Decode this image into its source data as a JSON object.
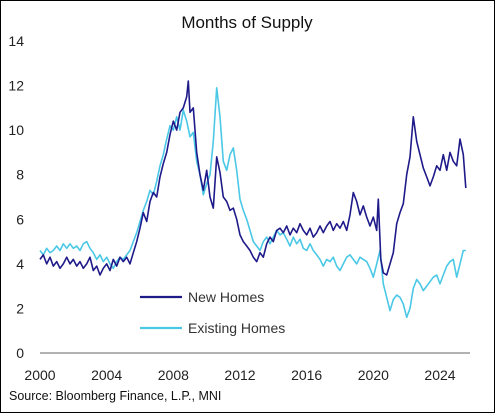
{
  "chart_data": {
    "type": "line",
    "title": "Months of Supply",
    "source": "Source: Bloomberg Finance, L.P., MNI",
    "xlabel": "",
    "ylabel": "",
    "xlim": [
      2000,
      2025.8
    ],
    "ylim": [
      0,
      14
    ],
    "xticks": [
      2000,
      2004,
      2008,
      2012,
      2016,
      2020,
      2024
    ],
    "yticks": [
      0,
      2,
      4,
      6,
      8,
      10,
      12,
      14
    ],
    "grid": "none",
    "legend_position": "lower-left",
    "series": [
      {
        "name": "New Homes",
        "color": "#1f1a8a",
        "points": [
          [
            2000.0,
            4.2
          ],
          [
            2000.2,
            4.4
          ],
          [
            2000.4,
            4.0
          ],
          [
            2000.6,
            4.3
          ],
          [
            2000.8,
            3.9
          ],
          [
            2001.0,
            4.1
          ],
          [
            2001.2,
            3.8
          ],
          [
            2001.4,
            4.0
          ],
          [
            2001.6,
            4.3
          ],
          [
            2001.8,
            4.0
          ],
          [
            2002.0,
            4.2
          ],
          [
            2002.2,
            3.9
          ],
          [
            2002.4,
            4.1
          ],
          [
            2002.6,
            3.8
          ],
          [
            2002.8,
            4.0
          ],
          [
            2003.0,
            4.3
          ],
          [
            2003.2,
            3.7
          ],
          [
            2003.4,
            3.9
          ],
          [
            2003.6,
            3.5
          ],
          [
            2003.8,
            3.8
          ],
          [
            2004.0,
            4.0
          ],
          [
            2004.2,
            3.7
          ],
          [
            2004.4,
            4.2
          ],
          [
            2004.6,
            3.9
          ],
          [
            2004.8,
            4.3
          ],
          [
            2005.0,
            4.1
          ],
          [
            2005.2,
            4.3
          ],
          [
            2005.4,
            4.0
          ],
          [
            2005.6,
            4.5
          ],
          [
            2005.8,
            5.0
          ],
          [
            2006.0,
            5.6
          ],
          [
            2006.2,
            6.3
          ],
          [
            2006.4,
            5.9
          ],
          [
            2006.6,
            6.8
          ],
          [
            2006.8,
            7.2
          ],
          [
            2007.0,
            7.0
          ],
          [
            2007.2,
            7.9
          ],
          [
            2007.4,
            8.5
          ],
          [
            2007.6,
            9.0
          ],
          [
            2007.8,
            9.8
          ],
          [
            2008.0,
            10.4
          ],
          [
            2008.2,
            10.0
          ],
          [
            2008.4,
            10.8
          ],
          [
            2008.6,
            11.0
          ],
          [
            2008.8,
            11.5
          ],
          [
            2008.9,
            12.2
          ],
          [
            2009.0,
            10.8
          ],
          [
            2009.2,
            11.0
          ],
          [
            2009.4,
            9.0
          ],
          [
            2009.6,
            8.0
          ],
          [
            2009.8,
            7.3
          ],
          [
            2010.0,
            8.2
          ],
          [
            2010.2,
            7.0
          ],
          [
            2010.4,
            6.5
          ],
          [
            2010.6,
            8.8
          ],
          [
            2010.8,
            8.1
          ],
          [
            2011.0,
            7.0
          ],
          [
            2011.2,
            6.8
          ],
          [
            2011.4,
            6.4
          ],
          [
            2011.6,
            6.5
          ],
          [
            2011.8,
            6.0
          ],
          [
            2012.0,
            5.3
          ],
          [
            2012.2,
            5.0
          ],
          [
            2012.4,
            4.8
          ],
          [
            2012.6,
            4.6
          ],
          [
            2012.8,
            4.3
          ],
          [
            2013.0,
            4.1
          ],
          [
            2013.2,
            4.5
          ],
          [
            2013.4,
            4.3
          ],
          [
            2013.6,
            4.9
          ],
          [
            2013.8,
            5.2
          ],
          [
            2014.0,
            5.0
          ],
          [
            2014.2,
            5.5
          ],
          [
            2014.4,
            5.6
          ],
          [
            2014.6,
            5.4
          ],
          [
            2014.8,
            5.7
          ],
          [
            2015.0,
            5.3
          ],
          [
            2015.2,
            5.6
          ],
          [
            2015.4,
            5.4
          ],
          [
            2015.6,
            5.8
          ],
          [
            2015.8,
            5.5
          ],
          [
            2016.0,
            5.3
          ],
          [
            2016.2,
            5.6
          ],
          [
            2016.4,
            5.2
          ],
          [
            2016.6,
            5.4
          ],
          [
            2016.8,
            5.7
          ],
          [
            2017.0,
            5.4
          ],
          [
            2017.2,
            5.7
          ],
          [
            2017.4,
            5.9
          ],
          [
            2017.6,
            5.5
          ],
          [
            2017.8,
            5.8
          ],
          [
            2018.0,
            5.6
          ],
          [
            2018.2,
            5.9
          ],
          [
            2018.4,
            5.5
          ],
          [
            2018.6,
            6.2
          ],
          [
            2018.8,
            7.2
          ],
          [
            2019.0,
            6.8
          ],
          [
            2019.2,
            6.2
          ],
          [
            2019.4,
            6.6
          ],
          [
            2019.6,
            6.1
          ],
          [
            2019.8,
            5.7
          ],
          [
            2020.0,
            6.1
          ],
          [
            2020.2,
            5.5
          ],
          [
            2020.3,
            6.9
          ],
          [
            2020.45,
            4.2
          ],
          [
            2020.6,
            3.6
          ],
          [
            2020.8,
            3.5
          ],
          [
            2021.0,
            4.0
          ],
          [
            2021.2,
            4.5
          ],
          [
            2021.4,
            5.8
          ],
          [
            2021.6,
            6.3
          ],
          [
            2021.8,
            6.7
          ],
          [
            2022.0,
            8.0
          ],
          [
            2022.2,
            8.8
          ],
          [
            2022.4,
            10.6
          ],
          [
            2022.6,
            9.5
          ],
          [
            2022.8,
            8.9
          ],
          [
            2023.0,
            8.3
          ],
          [
            2023.2,
            7.9
          ],
          [
            2023.4,
            7.5
          ],
          [
            2023.6,
            7.9
          ],
          [
            2023.8,
            8.4
          ],
          [
            2024.0,
            8.2
          ],
          [
            2024.2,
            8.9
          ],
          [
            2024.4,
            8.2
          ],
          [
            2024.6,
            9.0
          ],
          [
            2024.8,
            8.6
          ],
          [
            2025.0,
            8.4
          ],
          [
            2025.2,
            9.6
          ],
          [
            2025.4,
            8.9
          ],
          [
            2025.55,
            7.4
          ]
        ]
      },
      {
        "name": "Existing Homes",
        "color": "#4ac8e6",
        "points": [
          [
            2000.0,
            4.6
          ],
          [
            2000.2,
            4.4
          ],
          [
            2000.4,
            4.7
          ],
          [
            2000.6,
            4.5
          ],
          [
            2000.8,
            4.6
          ],
          [
            2001.0,
            4.8
          ],
          [
            2001.2,
            4.6
          ],
          [
            2001.4,
            4.9
          ],
          [
            2001.6,
            4.7
          ],
          [
            2001.8,
            4.9
          ],
          [
            2002.0,
            4.7
          ],
          [
            2002.2,
            4.8
          ],
          [
            2002.4,
            4.6
          ],
          [
            2002.6,
            4.9
          ],
          [
            2002.8,
            5.0
          ],
          [
            2003.0,
            4.7
          ],
          [
            2003.2,
            4.5
          ],
          [
            2003.4,
            4.2
          ],
          [
            2003.6,
            4.4
          ],
          [
            2003.8,
            4.1
          ],
          [
            2004.0,
            4.3
          ],
          [
            2004.2,
            4.0
          ],
          [
            2004.4,
            3.8
          ],
          [
            2004.6,
            4.1
          ],
          [
            2004.8,
            4.3
          ],
          [
            2005.0,
            4.2
          ],
          [
            2005.2,
            4.4
          ],
          [
            2005.4,
            4.6
          ],
          [
            2005.6,
            5.0
          ],
          [
            2005.8,
            5.4
          ],
          [
            2006.0,
            5.9
          ],
          [
            2006.2,
            6.4
          ],
          [
            2006.4,
            6.8
          ],
          [
            2006.6,
            7.3
          ],
          [
            2006.8,
            7.1
          ],
          [
            2007.0,
            7.7
          ],
          [
            2007.2,
            8.4
          ],
          [
            2007.4,
            8.9
          ],
          [
            2007.6,
            9.6
          ],
          [
            2007.8,
            10.2
          ],
          [
            2008.0,
            10.0
          ],
          [
            2008.2,
            10.6
          ],
          [
            2008.4,
            10.0
          ],
          [
            2008.6,
            10.9
          ],
          [
            2008.8,
            10.4
          ],
          [
            2009.0,
            9.7
          ],
          [
            2009.2,
            9.9
          ],
          [
            2009.4,
            8.6
          ],
          [
            2009.6,
            8.0
          ],
          [
            2009.8,
            7.1
          ],
          [
            2010.0,
            7.6
          ],
          [
            2010.2,
            8.0
          ],
          [
            2010.4,
            9.5
          ],
          [
            2010.6,
            11.9
          ],
          [
            2010.8,
            10.6
          ],
          [
            2011.0,
            8.6
          ],
          [
            2011.2,
            8.2
          ],
          [
            2011.4,
            8.9
          ],
          [
            2011.6,
            9.2
          ],
          [
            2011.8,
            8.2
          ],
          [
            2012.0,
            6.9
          ],
          [
            2012.2,
            6.4
          ],
          [
            2012.4,
            6.0
          ],
          [
            2012.6,
            5.5
          ],
          [
            2012.8,
            5.0
          ],
          [
            2013.0,
            4.8
          ],
          [
            2013.2,
            4.6
          ],
          [
            2013.4,
            5.0
          ],
          [
            2013.6,
            5.2
          ],
          [
            2013.8,
            4.9
          ],
          [
            2014.0,
            5.2
          ],
          [
            2014.2,
            5.5
          ],
          [
            2014.4,
            5.3
          ],
          [
            2014.6,
            5.4
          ],
          [
            2014.8,
            5.1
          ],
          [
            2015.0,
            4.8
          ],
          [
            2015.2,
            5.2
          ],
          [
            2015.4,
            4.9
          ],
          [
            2015.6,
            5.1
          ],
          [
            2015.8,
            4.7
          ],
          [
            2016.0,
            4.6
          ],
          [
            2016.2,
            4.9
          ],
          [
            2016.4,
            4.6
          ],
          [
            2016.6,
            4.4
          ],
          [
            2016.8,
            4.2
          ],
          [
            2017.0,
            3.9
          ],
          [
            2017.2,
            4.2
          ],
          [
            2017.4,
            4.1
          ],
          [
            2017.6,
            4.3
          ],
          [
            2017.8,
            3.9
          ],
          [
            2018.0,
            3.7
          ],
          [
            2018.2,
            4.0
          ],
          [
            2018.4,
            4.3
          ],
          [
            2018.6,
            4.4
          ],
          [
            2018.8,
            4.2
          ],
          [
            2019.0,
            4.0
          ],
          [
            2019.2,
            4.3
          ],
          [
            2019.4,
            4.2
          ],
          [
            2019.6,
            4.1
          ],
          [
            2019.8,
            3.8
          ],
          [
            2020.0,
            3.4
          ],
          [
            2020.2,
            4.0
          ],
          [
            2020.4,
            4.6
          ],
          [
            2020.6,
            3.1
          ],
          [
            2020.8,
            2.5
          ],
          [
            2021.0,
            1.9
          ],
          [
            2021.2,
            2.4
          ],
          [
            2021.4,
            2.6
          ],
          [
            2021.6,
            2.5
          ],
          [
            2021.8,
            2.2
          ],
          [
            2022.0,
            1.6
          ],
          [
            2022.2,
            2.0
          ],
          [
            2022.4,
            2.9
          ],
          [
            2022.6,
            3.3
          ],
          [
            2022.8,
            3.1
          ],
          [
            2023.0,
            2.8
          ],
          [
            2023.2,
            3.0
          ],
          [
            2023.4,
            3.2
          ],
          [
            2023.6,
            3.4
          ],
          [
            2023.8,
            3.5
          ],
          [
            2024.0,
            3.1
          ],
          [
            2024.2,
            3.5
          ],
          [
            2024.4,
            3.9
          ],
          [
            2024.6,
            4.1
          ],
          [
            2024.8,
            4.2
          ],
          [
            2025.0,
            3.4
          ],
          [
            2025.2,
            4.0
          ],
          [
            2025.4,
            4.6
          ],
          [
            2025.55,
            4.6
          ]
        ]
      }
    ]
  }
}
